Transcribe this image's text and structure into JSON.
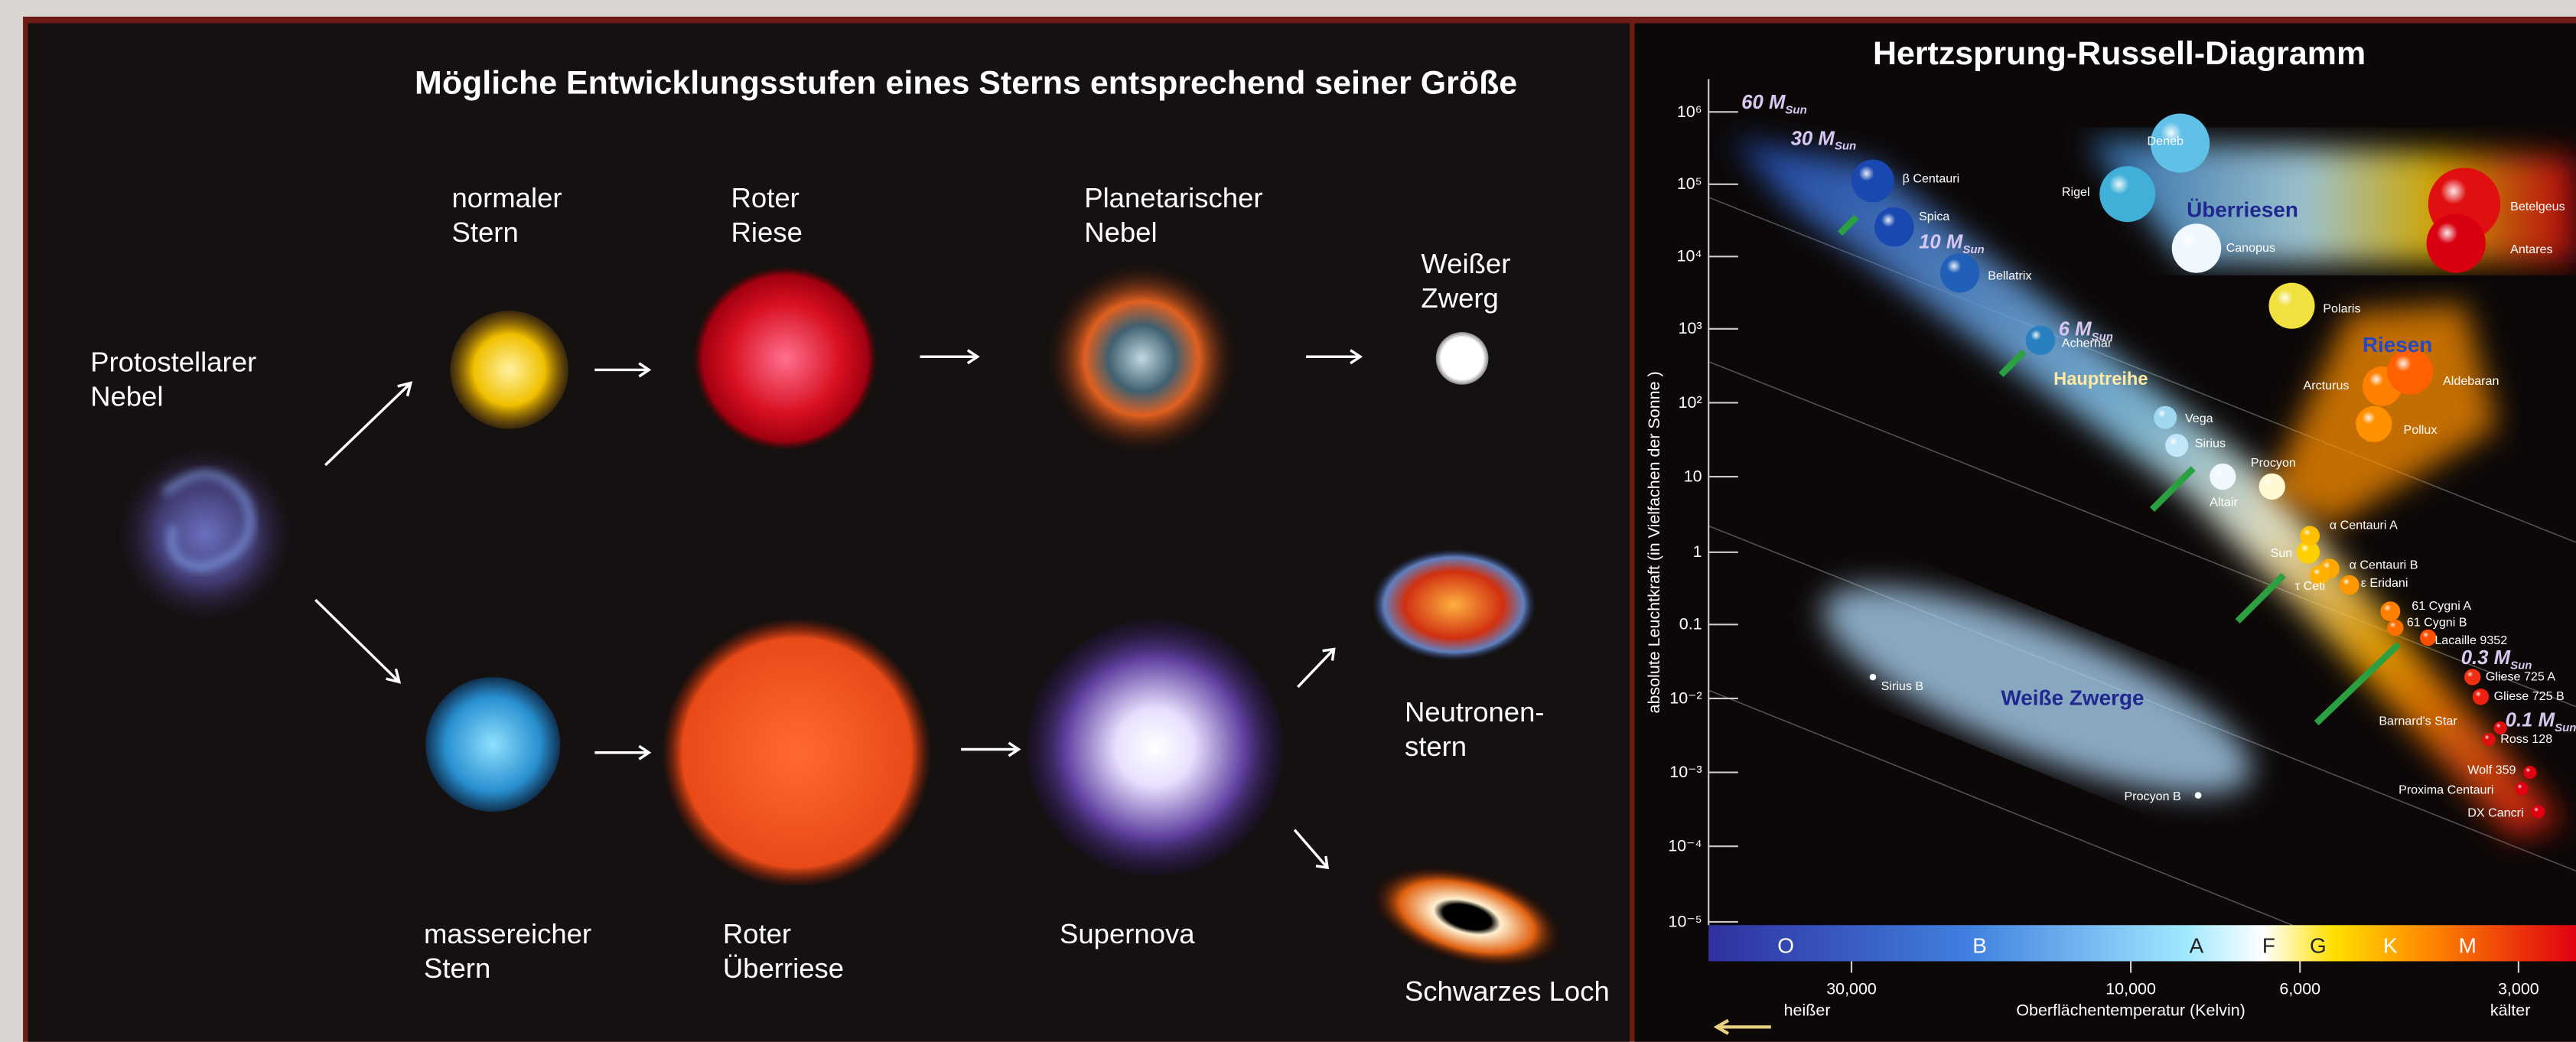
{
  "left_panel": {
    "title": "Mögliche Entwicklungsstufen eines Sterns entsprechend seiner Größe",
    "stages": [
      [
        "normaler",
        "Stern"
      ],
      [
        "Roter",
        "Riese"
      ],
      [
        "Planetarischer",
        "Nebel"
      ],
      [
        "Weißer",
        "Zwerg"
      ],
      [
        "Protostellarer",
        "Nebel"
      ],
      [
        "massereicher",
        "Stern"
      ],
      [
        "Roter",
        "Überriese"
      ],
      [
        "Supernova"
      ],
      [
        "Neutronen-",
        "stern"
      ],
      [
        "Schwarzes Loch"
      ]
    ]
  },
  "hr_diagram": {
    "title": "Hertzsprung-Russell-Diagramm",
    "y_axis_label": "absolute Leuchtkraft (in Vielfachen der Sonne )",
    "y_ticks": [
      "10⁶",
      "10⁵",
      "10⁴",
      "10³",
      "10²",
      "10",
      "1",
      "0.1",
      "10⁻²",
      "10⁻³",
      "10⁻⁴",
      "10⁻⁵"
    ],
    "spectral_classes": [
      "O",
      "B",
      "A",
      "F",
      "G",
      "K",
      "M"
    ],
    "x_ticks": [
      "30,000",
      "10,000",
      "6,000",
      "3,000"
    ],
    "x_axis_label": "Oberflächentemperatur (Kelvin)",
    "hot_label": "heißer",
    "cold_label": "kälter",
    "regions": [
      "Überriesen",
      "Riesen",
      "Hauptreihe",
      "Weiße Zwerge"
    ],
    "masses": [
      [
        "60 ",
        "M",
        "Sun"
      ],
      [
        "30 ",
        "M",
        "Sun"
      ],
      [
        "10 ",
        "M",
        "Sun"
      ],
      [
        "6 ",
        "M",
        "Sun"
      ],
      [
        "0.3 ",
        "M",
        "Sun"
      ],
      [
        "0.1 ",
        "M",
        "Sun"
      ]
    ],
    "stars": [
      "β Centauri",
      "Spica",
      "Bellatrix",
      "Achernar",
      "Vega",
      "Sirius",
      "Altair",
      "Procyon",
      "Sun",
      "α Centauri A",
      "α Centauri B",
      "τ Ceti",
      "ε Eridani",
      "61 Cygni A",
      "61 Cygni B",
      "Lacaille 9352",
      "Gliese 725 A",
      "Gliese 725 B",
      "Barnard's Star",
      "Ross 128",
      "Wolf 359",
      "Proxima Centauri",
      "DX Cancri",
      "Deneb",
      "Rigel",
      "Canopus",
      "Polaris",
      "Betelgeus",
      "Antares",
      "Arcturus",
      "Aldebaran",
      "Pollux",
      "Sirius B",
      "Procyon B"
    ]
  }
}
